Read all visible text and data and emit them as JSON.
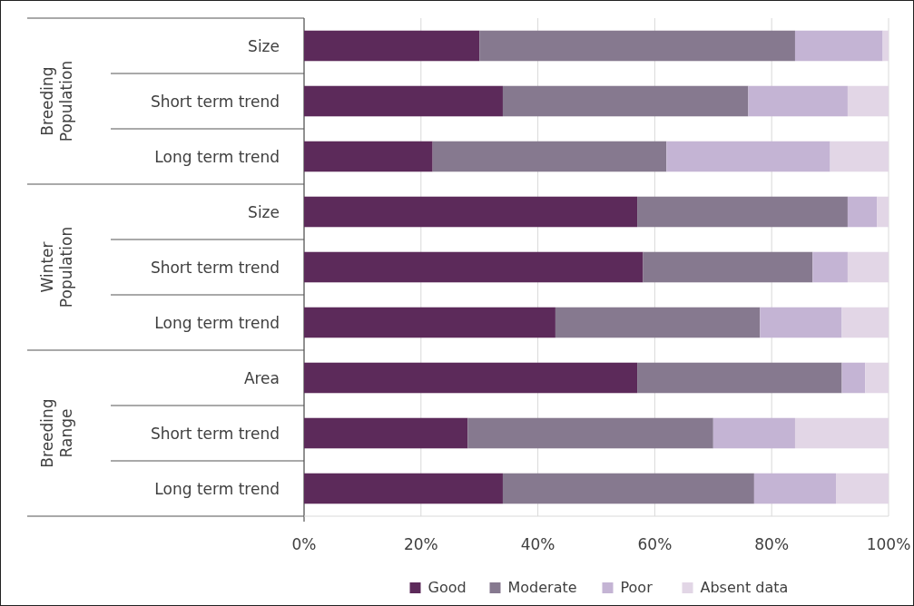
{
  "chart_data": {
    "type": "bar",
    "orientation": "horizontal",
    "stacked": true,
    "categories": [
      "Size",
      "Short term trend",
      "Long term trend",
      "Size",
      "Short term trend",
      "Long term trend",
      "Area",
      "Short term trend",
      "Long term trend"
    ],
    "series": [
      {
        "name": "Good",
        "color": "#5c2a5a",
        "values": [
          30,
          34,
          22,
          57,
          58,
          43,
          57,
          28,
          34
        ]
      },
      {
        "name": "Moderate",
        "color": "#86798f",
        "values": [
          54,
          42,
          40,
          36,
          29,
          35,
          35,
          42,
          43
        ]
      },
      {
        "name": "Poor",
        "color": "#c4b4d4",
        "values": [
          15,
          17,
          28,
          5,
          6,
          14,
          4,
          14,
          14
        ]
      },
      {
        "name": "Absent data",
        "color": "#e2d6e6",
        "values": [
          1,
          7,
          10,
          2,
          7,
          8,
          4,
          16,
          9
        ]
      }
    ],
    "xlim": [
      0,
      100
    ],
    "xticks": [
      {
        "value": 0,
        "label": "0%"
      },
      {
        "value": 20,
        "label": "20%"
      },
      {
        "value": 40,
        "label": "40%"
      },
      {
        "value": 60,
        "label": "60%"
      },
      {
        "value": 80,
        "label": "80%"
      },
      {
        "value": 100,
        "label": "100%"
      }
    ],
    "grid": "x",
    "legend": "bottom",
    "annotations": [
      "Breeding Population",
      "Winter Population",
      "Breeding Range"
    ]
  }
}
